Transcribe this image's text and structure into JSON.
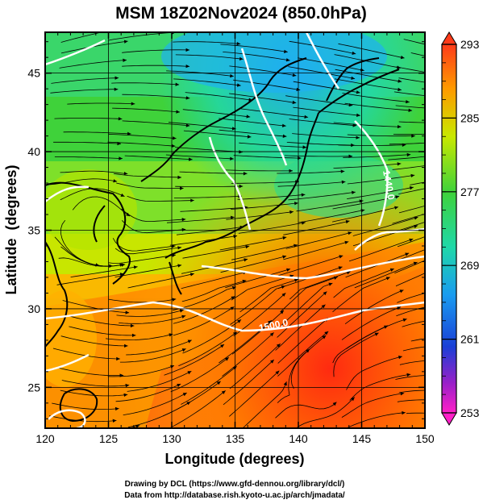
{
  "chart_data": {
    "type": "heatmap",
    "title": "MSM 18Z02Nov2024 (850.0hPa)",
    "xlabel": "Longitude (degrees)",
    "ylabel": "Latitude  (degrees)",
    "xlim": [
      120,
      150
    ],
    "ylim": [
      22.4,
      47.6
    ],
    "x_ticks": [
      "120",
      "125",
      "130",
      "135",
      "140",
      "145",
      "150"
    ],
    "y_ticks": [
      "25",
      "30",
      "35",
      "40",
      "45"
    ],
    "grid": true,
    "colorbar": {
      "ticks": [
        "293",
        "285",
        "277",
        "269",
        "261",
        "253"
      ],
      "range": [
        253,
        293
      ]
    },
    "contour_labels": [
      "1440.0",
      "1500.0"
    ],
    "footer": [
      "Drawing by DCL (https://www.gfd-dennou.org/library/dcl/)",
      "Data from http://database.rish.kyoto-u.ac.jp/arch/jmadata/"
    ]
  }
}
